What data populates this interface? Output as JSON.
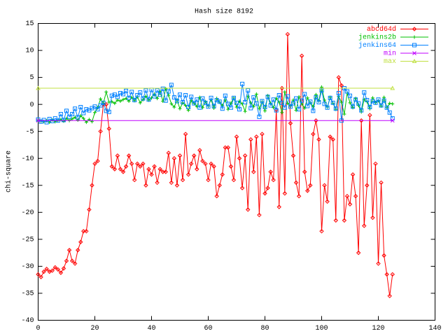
{
  "chart_data": {
    "type": "line",
    "title": "Hash size 8192",
    "y_label": "chi-square",
    "xlim": [
      0,
      140
    ],
    "ylim": [
      -40,
      15
    ],
    "xticks": [
      0,
      20,
      40,
      60,
      80,
      100,
      120,
      140
    ],
    "yticks": [
      -40,
      -35,
      -30,
      -25,
      -20,
      -15,
      -10,
      -5,
      0,
      5,
      10,
      15
    ],
    "grid": false,
    "legend": "top-right",
    "x": [
      0,
      1,
      2,
      3,
      4,
      5,
      6,
      7,
      8,
      9,
      10,
      11,
      12,
      13,
      14,
      15,
      16,
      17,
      18,
      19,
      20,
      21,
      22,
      23,
      24,
      25,
      26,
      27,
      28,
      29,
      30,
      31,
      32,
      33,
      34,
      35,
      36,
      37,
      38,
      39,
      40,
      41,
      42,
      43,
      44,
      45,
      46,
      47,
      48,
      49,
      50,
      51,
      52,
      53,
      54,
      55,
      56,
      57,
      58,
      59,
      60,
      61,
      62,
      63,
      64,
      65,
      66,
      67,
      68,
      69,
      70,
      71,
      72,
      73,
      74,
      75,
      76,
      77,
      78,
      79,
      80,
      81,
      82,
      83,
      84,
      85,
      86,
      87,
      88,
      89,
      90,
      91,
      92,
      93,
      94,
      95,
      96,
      97,
      98,
      99,
      100,
      101,
      102,
      103,
      104,
      105,
      106,
      107,
      108,
      109,
      110,
      111,
      112,
      113,
      114,
      115,
      116,
      117,
      118,
      119,
      120,
      121,
      122,
      123,
      124,
      125
    ],
    "series": [
      {
        "name": "abcd64d",
        "color": "#ff0000",
        "values": [
          -31.5,
          -32,
          -31,
          -30.5,
          -31,
          -30.8,
          -30.2,
          -30.6,
          -31.2,
          -30.4,
          -29,
          -27,
          -29,
          -29.5,
          -27,
          -25.5,
          -23.5,
          -23.5,
          -19.5,
          -15,
          -11,
          -10.5,
          -5,
          0,
          0,
          -4.5,
          -11.5,
          -12,
          -9.5,
          -12,
          -12.5,
          -11.5,
          -9.5,
          -11,
          -14,
          -11,
          -11.5,
          -11,
          -15,
          -12,
          -13,
          -11.5,
          -14.5,
          -12,
          -12.5,
          -12.5,
          -9,
          -14.5,
          -10,
          -15,
          -9.5,
          -14,
          -5.5,
          -13,
          -11,
          -9.5,
          -12,
          -8.5,
          -10.5,
          -11,
          -14,
          -11,
          -11.5,
          -17,
          -15,
          -13,
          -8,
          -8,
          -11.5,
          -14,
          -6,
          -10,
          -15.5,
          -9.5,
          -19.5,
          -6.5,
          -12.5,
          -6,
          -20.5,
          -5.5,
          -16.5,
          -15.5,
          -12.5,
          -14,
          -1,
          -19,
          3,
          -16.5,
          13,
          -3.5,
          -9.5,
          -14.5,
          -17,
          9,
          -12.5,
          -16,
          -15,
          -5.5,
          -3,
          -6.5,
          -23.5,
          -15,
          -18,
          -6,
          -6.5,
          -21.5,
          5,
          3.5,
          -21.5,
          -17,
          -18.5,
          -13,
          -17,
          -27.5,
          -3,
          -22.5,
          -15,
          -2,
          -21,
          -11,
          -29.5,
          -14.5,
          -28,
          -31.5,
          -35.5,
          -31.5
        ]
      },
      {
        "name": "jenkins2b",
        "color": "#00c000",
        "values": [
          -3,
          -3.1,
          -3.2,
          -3,
          -3.3,
          -2.9,
          -3.2,
          -3,
          -2.8,
          -3.1,
          -2.6,
          -3,
          -2.7,
          -2.4,
          -2.9,
          -2.1,
          -2.6,
          -3.3,
          -2.8,
          -3.2,
          -1.5,
          -0.6,
          1,
          0.2,
          2.3,
          0.4,
          0.5,
          0.2,
          0.8,
          0.6,
          0.9,
          1.1,
          0.6,
          1.3,
          0.7,
          1.4,
          0.3,
          0.9,
          1.5,
          0.8,
          1.2,
          1.9,
          1.1,
          2.4,
          0.6,
          2.9,
          1.7,
          0.1,
          -0.5,
          0.8,
          -0.8,
          0.3,
          -0.2,
          -1.1,
          0.7,
          0.2,
          -0.4,
          1.3,
          -0.6,
          0.5,
          -0.3,
          0.9,
          -0.7,
          1.1,
          0.4,
          -0.2,
          0.8,
          -0.9,
          0.2,
          1.2,
          -0.5,
          0.6,
          0.1,
          -1.3,
          1.5,
          0.3,
          -0.4,
          1.9,
          -0.8,
          0.5,
          -1.2,
          1.6,
          0.2,
          -0.6,
          1.1,
          0.4,
          -1.5,
          2.3,
          0.2,
          -0.3,
          0.8,
          -1.1,
          1.4,
          0.1,
          -0.7,
          1.2,
          0.3,
          -0.4,
          1.8,
          0.6,
          3.2,
          0.8,
          -0.5,
          1.3,
          0.2,
          -0.9,
          1.5,
          0.4,
          -1.8,
          2.1,
          0.3,
          -0.6,
          1.1,
          -0.2,
          -1.4,
          0.9,
          0.5,
          -0.8,
          1.2,
          0.3,
          0.7,
          -0.3,
          1.3,
          -0.6,
          0.2,
          0.1
        ]
      },
      {
        "name": "jenkins64",
        "color": "#0080ff",
        "values": [
          -2.8,
          -3.2,
          -2.9,
          -3.3,
          -2.7,
          -3.1,
          -2.6,
          -3,
          -1.8,
          -2.9,
          -1.2,
          -2.3,
          -1.8,
          -0.8,
          -2.4,
          -0.5,
          -1.6,
          -0.9,
          -1.1,
          -0.7,
          -0.4,
          -0.9,
          -0.2,
          0.3,
          -1.2,
          -1.4,
          1.6,
          1.8,
          1.4,
          2.1,
          1.9,
          2.5,
          1.2,
          2.3,
          0.8,
          1.7,
          2.2,
          1.1,
          2.6,
          0.9,
          2.7,
          1.5,
          2.6,
          1.8,
          2.9,
          0.7,
          2.4,
          3.6,
          1.3,
          0.6,
          1.8,
          0.4,
          1.7,
          -0.5,
          1.4,
          0.2,
          0.9,
          -0.6,
          1.1,
          0.3,
          -0.4,
          1.2,
          -0.3,
          0.8,
          0.5,
          -0.8,
          1.6,
          0.1,
          -0.6,
          1.2,
          0.3,
          -0.9,
          3.8,
          0.4,
          2.6,
          -0.7,
          1.3,
          0.2,
          -2.3,
          0.6,
          -0.5,
          1.4,
          -0.2,
          0.9,
          -1.1,
          1.7,
          0.3,
          -0.6,
          1.5,
          -0.4,
          0.2,
          1.1,
          -0.9,
          0.7,
          1.9,
          -0.3,
          0.5,
          -1.2,
          1.3,
          0.4,
          2.6,
          0.1,
          -0.6,
          1.2,
          0.3,
          -0.8,
          2.1,
          -3,
          3,
          2.4,
          1.6,
          -0.4,
          0.9,
          0.2,
          -1.1,
          2.2,
          0.8,
          -0.5,
          0.6,
          0.3,
          0.9,
          -0.2,
          0.7,
          -0.6,
          -1.5,
          -2.6
        ]
      },
      {
        "name": "min",
        "color": "#c000ff",
        "x": [
          0,
          125
        ],
        "values": [
          -3,
          -3
        ]
      },
      {
        "name": "max",
        "color": "#c0e040",
        "x": [
          0,
          125
        ],
        "values": [
          3,
          3
        ]
      }
    ]
  }
}
